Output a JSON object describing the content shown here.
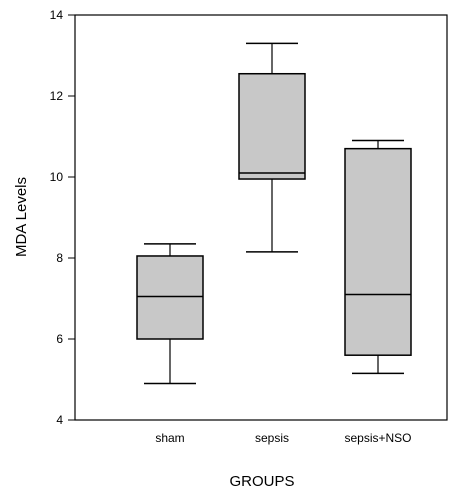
{
  "chart_data": {
    "type": "box",
    "xlabel": "GROUPS",
    "ylabel": "MDA Levels",
    "ylim": [
      4,
      14
    ],
    "yticks": [
      "4",
      "6",
      "8",
      "10",
      "12",
      "14"
    ],
    "grid": false,
    "categories": [
      "sham",
      "sepsis",
      "sepsis+NSO"
    ],
    "boxes": [
      {
        "category": "sham",
        "whisker_low": 4.9,
        "q1": 6.0,
        "median": 7.05,
        "q3": 8.05,
        "whisker_high": 8.35
      },
      {
        "category": "sepsis",
        "whisker_low": 8.15,
        "q1": 9.95,
        "median": 10.1,
        "q3": 12.55,
        "whisker_high": 13.3
      },
      {
        "category": "sepsis+NSO",
        "whisker_low": 5.15,
        "q1": 5.6,
        "median": 7.1,
        "q3": 10.7,
        "whisker_high": 10.9
      }
    ],
    "colors": {
      "box_fill": "#c8c8c8",
      "stroke": "#000000"
    }
  }
}
